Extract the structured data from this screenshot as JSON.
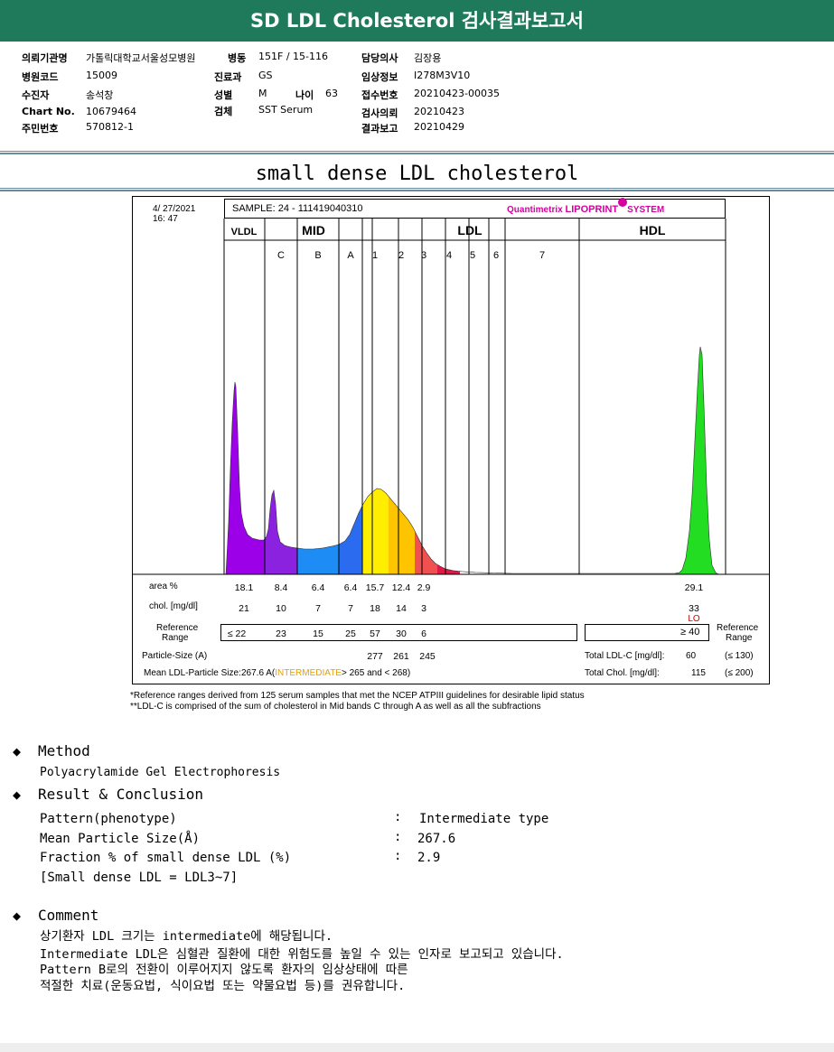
{
  "report_title": "SD LDL Cholesterol 검사결과보고서",
  "patient_info": {
    "institution_label": "의뢰기관명",
    "institution_value": "가톨릭대학교서울성모병원",
    "ward_label": "병동",
    "ward_value": "151F / 15-116",
    "doctor_label": "담당의사",
    "doctor_value": "김장용",
    "hospital_code_label": "병원코드",
    "hospital_code_value": "15009",
    "department_label": "진료과",
    "department_value": "GS",
    "clinical_info_label": "임상정보",
    "clinical_info_value": "I278M3V10",
    "patient_label": "수진자",
    "patient_value": "송석창",
    "sex_label": "성별",
    "sex_value": "M",
    "age_label": "나이",
    "age_value": "63",
    "receipt_label": "접수번호",
    "receipt_value": "20210423-00035",
    "chart_label": "Chart No.",
    "chart_value": "10679464",
    "specimen_label": "검체",
    "specimen_value": "SST Serum",
    "request_label": "검사의뢰",
    "request_value": "20210423",
    "id_label": "주민번호",
    "id_value": "570812-1",
    "report_label": "결과보고",
    "report_value": "20210429"
  },
  "section_title": "small dense LDL cholesterol",
  "lipoprint": {
    "date": "4/ 27/2021",
    "time": "16: 47",
    "sample": "SAMPLE:    24 - 111419040310",
    "brand_q": "Quantimetrix ",
    "brand_l": "LIPOPRINT",
    "brand_s": "SYSTEM",
    "group_vldl": "VLDL",
    "group_mid": "MID",
    "group_ldl": "LDL",
    "group_hdl": "HDL",
    "band_labels": [
      "C",
      "B",
      "A",
      "1",
      "2",
      "3",
      "4",
      "5",
      "6",
      "7"
    ],
    "row_area_label": "area %",
    "area_values": [
      "18.1",
      "8.4",
      "6.4",
      "6.4",
      "15.7",
      "12.4",
      "2.9"
    ],
    "area_hdl": "29.1",
    "row_chol_label": "chol. [mg/dl]",
    "chol_values": [
      "21",
      "10",
      "7",
      "7",
      "18",
      "14",
      "3"
    ],
    "chol_hdl": "33",
    "chol_hdl_flag": "LO",
    "ref_label_1": "Reference",
    "ref_label_2": "Range",
    "ref_values": [
      "≤ 22",
      "23",
      "15",
      "25",
      "57",
      "30",
      "6"
    ],
    "ref_hdl": "≥ 40",
    "particle_label": "Particle-Size (A)",
    "particle_values": [
      "277",
      "261",
      "245"
    ],
    "mean_label": "Mean LDL-Particle Size:",
    "mean_value": "267.6",
    "mean_a": "A(",
    "mean_type": "INTERMEDIATE",
    "mean_range": "> 265 and < 268)",
    "total_ldl_label": "Total LDL-C [mg/dl]:",
    "total_ldl_value": "60",
    "total_ldl_ref": "(≤ 130)",
    "total_chol_label": "Total Chol. [mg/dl]:",
    "total_chol_value": "115",
    "total_chol_ref": "(≤ 200)",
    "colors": {
      "vldl": "#9b00e8",
      "mid_c": "#8a22e0",
      "mid_b": "#1e8cf5",
      "mid_a": "#2a6bf0",
      "ldl1": "#ffee00",
      "ldl2": "#ffc400",
      "ldl3": "#f05050",
      "ldl4": "#e01848",
      "hdl": "#22dd22"
    }
  },
  "footnotes": [
    "*Reference ranges derived from 125 serum samples that met the NCEP ATPIII guidelines for desirable lipid status",
    "**LDL-C is comprised of the sum of cholesterol in Mid bands C through A as well as all the subfractions"
  ],
  "method": {
    "heading": "Method",
    "text": "Polyacrylamide Gel Electrophoresis"
  },
  "result": {
    "heading": "Result & Conclusion",
    "rows": [
      {
        "label": "Pattern(phenotype)",
        "value": "Intermediate type"
      },
      {
        "label": "Mean Particle Size(Å)",
        "value": "267.6"
      },
      {
        "label": "Fraction % of small dense LDL (%)",
        "value": "2.9"
      }
    ],
    "note": "[Small dense LDL = LDL3~7]",
    "colon": ":"
  },
  "comment": {
    "heading": "Comment",
    "lines": [
      "상기환자 LDL 크기는 intermediate에 해당됩니다.",
      "Intermediate LDL은 심혈관 질환에 대한 위험도를 높일 수 있는 인자로 보고되고 있습니다.",
      "Pattern B로의 전환이 이루어지지 않도록 환자의 임상상태에 따른",
      "적절한 치료(운동요법, 식이요법 또는 약물요법 등)를 권유합니다."
    ]
  }
}
